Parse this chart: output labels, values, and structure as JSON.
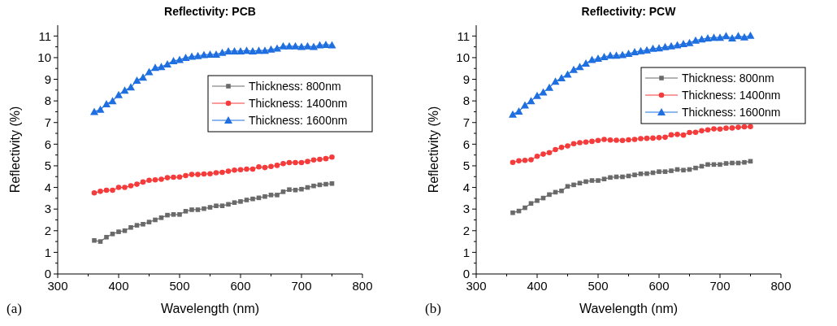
{
  "chart_data": [
    {
      "type": "line",
      "title": "Reflectivity: PCB",
      "xlabel": "Wavelength (nm)",
      "ylabel": "Reflectivity (%)",
      "annotations": [
        "(a)"
      ],
      "x": [
        360,
        370,
        380,
        390,
        400,
        410,
        420,
        430,
        440,
        450,
        460,
        470,
        480,
        490,
        500,
        510,
        520,
        530,
        540,
        550,
        560,
        570,
        580,
        590,
        600,
        610,
        620,
        630,
        640,
        650,
        660,
        670,
        680,
        690,
        700,
        710,
        720,
        730,
        740,
        750
      ],
      "xlim": [
        300,
        800
      ],
      "xticks": [
        300,
        {
          "value": 350,
          "label": null
        },
        400,
        {
          "value": 450,
          "label": null
        },
        500,
        {
          "value": 550,
          "label": null
        },
        600,
        {
          "value": 650,
          "label": null
        },
        700,
        {
          "value": 750,
          "label": null
        },
        800
      ],
      "ylim": [
        0,
        11.5
      ],
      "yticks": [
        0,
        {
          "value": 0.5,
          "label": null
        },
        1,
        {
          "value": 1.5,
          "label": null
        },
        2,
        {
          "value": 2.5,
          "label": null
        },
        3,
        {
          "value": 3.5,
          "label": null
        },
        4,
        {
          "value": 4.5,
          "label": null
        },
        5,
        {
          "value": 5.5,
          "label": null
        },
        6,
        {
          "value": 6.5,
          "label": null
        },
        7,
        {
          "value": 7.5,
          "label": null
        },
        8,
        {
          "value": 8.5,
          "label": null
        },
        9,
        {
          "value": 9.5,
          "label": null
        },
        10,
        {
          "value": 10.5,
          "label": null
        },
        11
      ],
      "grid": false,
      "legend": "right",
      "line_style": "solid",
      "series": [
        {
          "name": "Thickness: 800nm",
          "color": "#6a6a6a",
          "marker": "square",
          "values": [
            1.55,
            1.5,
            1.7,
            1.85,
            1.95,
            2.0,
            2.15,
            2.25,
            2.3,
            2.4,
            2.5,
            2.6,
            2.72,
            2.75,
            2.75,
            2.9,
            2.97,
            2.97,
            3.02,
            3.08,
            3.15,
            3.15,
            3.22,
            3.3,
            3.35,
            3.42,
            3.47,
            3.52,
            3.58,
            3.65,
            3.65,
            3.8,
            3.9,
            3.88,
            3.92,
            4.0,
            4.07,
            4.12,
            4.15,
            4.18
          ]
        },
        {
          "name": "Thickness: 1400nm",
          "color": "#f53b3b",
          "marker": "circle",
          "values": [
            3.75,
            3.82,
            3.87,
            3.87,
            4.0,
            4.0,
            4.08,
            4.15,
            4.25,
            4.33,
            4.35,
            4.38,
            4.45,
            4.47,
            4.48,
            4.55,
            4.6,
            4.6,
            4.62,
            4.63,
            4.68,
            4.7,
            4.75,
            4.8,
            4.82,
            4.85,
            4.85,
            4.95,
            4.92,
            4.97,
            5.02,
            5.1,
            5.15,
            5.15,
            5.15,
            5.2,
            5.27,
            5.3,
            5.33,
            5.4
          ]
        },
        {
          "name": "Thickness: 1600nm",
          "color": "#1f6fe0",
          "marker": "triangle",
          "values": [
            7.5,
            7.6,
            7.85,
            8.0,
            8.28,
            8.48,
            8.63,
            8.94,
            9.09,
            9.34,
            9.54,
            9.57,
            9.7,
            9.85,
            9.9,
            10.0,
            10.05,
            10.08,
            10.13,
            10.15,
            10.15,
            10.23,
            10.3,
            10.3,
            10.3,
            10.33,
            10.3,
            10.33,
            10.33,
            10.38,
            10.43,
            10.53,
            10.53,
            10.53,
            10.5,
            10.53,
            10.5,
            10.58,
            10.6,
            10.58
          ]
        }
      ]
    },
    {
      "type": "line",
      "title": "Reflectivity: PCW",
      "xlabel": "Wavelength (nm)",
      "ylabel": "Reflectivity (%)",
      "annotations": [
        "(b)"
      ],
      "x": [
        360,
        370,
        380,
        390,
        400,
        410,
        420,
        430,
        440,
        450,
        460,
        470,
        480,
        490,
        500,
        510,
        520,
        530,
        540,
        550,
        560,
        570,
        580,
        590,
        600,
        610,
        620,
        630,
        640,
        650,
        660,
        670,
        680,
        690,
        700,
        710,
        720,
        730,
        740,
        750
      ],
      "xlim": [
        300,
        800
      ],
      "xticks": [
        300,
        {
          "value": 350,
          "label": null
        },
        400,
        {
          "value": 450,
          "label": null
        },
        500,
        {
          "value": 550,
          "label": null
        },
        600,
        {
          "value": 650,
          "label": null
        },
        700,
        {
          "value": 750,
          "label": null
        },
        800
      ],
      "ylim": [
        0,
        11.5
      ],
      "yticks": [
        0,
        {
          "value": 0.5,
          "label": null
        },
        1,
        {
          "value": 1.5,
          "label": null
        },
        2,
        {
          "value": 2.5,
          "label": null
        },
        3,
        {
          "value": 3.5,
          "label": null
        },
        4,
        {
          "value": 4.5,
          "label": null
        },
        5,
        {
          "value": 5.5,
          "label": null
        },
        6,
        {
          "value": 6.5,
          "label": null
        },
        7,
        {
          "value": 7.5,
          "label": null
        },
        8,
        {
          "value": 8.5,
          "label": null
        },
        9,
        {
          "value": 9.5,
          "label": null
        },
        10,
        {
          "value": 10.5,
          "label": null
        },
        11
      ],
      "grid": false,
      "legend": "top right",
      "line_style": "solid",
      "series": [
        {
          "name": "Thickness: 800nm",
          "color": "#6a6a6a",
          "marker": "square",
          "values": [
            2.83,
            2.91,
            3.06,
            3.26,
            3.39,
            3.51,
            3.67,
            3.78,
            3.84,
            4.05,
            4.12,
            4.2,
            4.27,
            4.32,
            4.32,
            4.39,
            4.46,
            4.49,
            4.49,
            4.53,
            4.58,
            4.63,
            4.64,
            4.68,
            4.73,
            4.73,
            4.77,
            4.83,
            4.8,
            4.83,
            4.9,
            4.98,
            5.06,
            5.06,
            5.06,
            5.11,
            5.13,
            5.13,
            5.16,
            5.21
          ]
        },
        {
          "name": "Thickness: 1400nm",
          "color": "#f53b3b",
          "marker": "circle",
          "values": [
            5.16,
            5.23,
            5.25,
            5.28,
            5.44,
            5.54,
            5.61,
            5.75,
            5.85,
            5.92,
            6.02,
            6.07,
            6.1,
            6.13,
            6.17,
            6.22,
            6.19,
            6.18,
            6.17,
            6.2,
            6.22,
            6.26,
            6.27,
            6.28,
            6.3,
            6.32,
            6.43,
            6.45,
            6.42,
            6.54,
            6.55,
            6.62,
            6.66,
            6.71,
            6.7,
            6.74,
            6.75,
            6.78,
            6.8,
            6.81
          ]
        },
        {
          "name": "Thickness: 1600nm",
          "color": "#1f6fe0",
          "marker": "triangle",
          "values": [
            7.38,
            7.52,
            7.8,
            8.0,
            8.24,
            8.4,
            8.62,
            8.9,
            9.06,
            9.23,
            9.44,
            9.57,
            9.73,
            9.9,
            9.96,
            10.03,
            10.1,
            10.1,
            10.13,
            10.18,
            10.26,
            10.31,
            10.34,
            10.42,
            10.44,
            10.49,
            10.53,
            10.58,
            10.64,
            10.68,
            10.8,
            10.85,
            10.9,
            10.93,
            10.93,
            11.0,
            10.9,
            11.0,
            10.95,
            11.02
          ]
        }
      ]
    }
  ]
}
